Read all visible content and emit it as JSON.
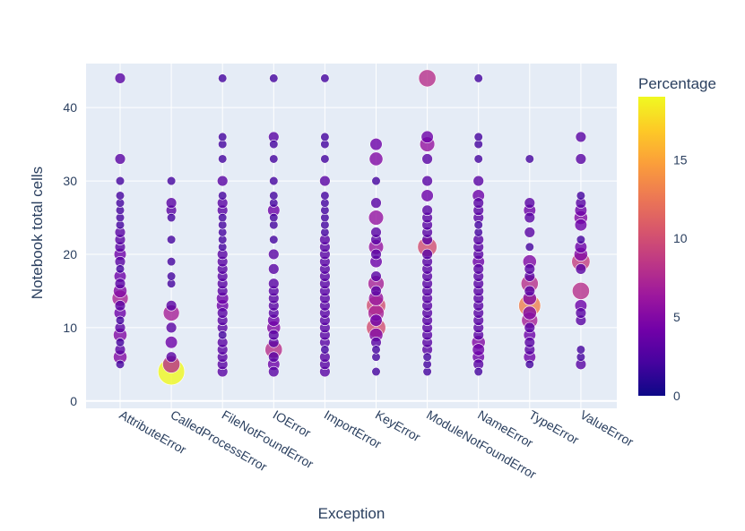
{
  "chart_data": {
    "type": "scatter",
    "subtype": "bubble",
    "xlabel": "Exception",
    "ylabel": "Notebook total cells",
    "categories": [
      "AttributeError",
      "CalledProcessError",
      "FileNotFoundError",
      "IOError",
      "ImportError",
      "KeyError",
      "ModuleNotFoundError",
      "NameError",
      "TypeError",
      "ValueError"
    ],
    "ylim": [
      -1,
      46
    ],
    "yticks": [
      0,
      10,
      20,
      30,
      40
    ],
    "colorbar": {
      "title": "Percentage",
      "min": 0,
      "max": 19,
      "ticks": [
        0,
        5,
        10,
        15
      ]
    },
    "colorscale": [
      "#0d0887",
      "#46039f",
      "#7201a8",
      "#9c179e",
      "#bd3786",
      "#d8576b",
      "#ed7953",
      "#fb9f3a",
      "#fdca26",
      "#f0f921"
    ],
    "series": [
      {
        "name": "AttributeError",
        "points": [
          [
            5,
            2
          ],
          [
            6,
            5
          ],
          [
            7,
            3
          ],
          [
            8,
            2
          ],
          [
            9,
            5
          ],
          [
            10,
            3
          ],
          [
            11,
            2
          ],
          [
            12,
            4
          ],
          [
            13,
            3
          ],
          [
            14,
            7
          ],
          [
            15,
            5
          ],
          [
            16,
            3
          ],
          [
            17,
            4
          ],
          [
            18,
            2
          ],
          [
            19,
            3
          ],
          [
            20,
            4
          ],
          [
            21,
            3
          ],
          [
            22,
            3
          ],
          [
            23,
            3
          ],
          [
            24,
            2
          ],
          [
            25,
            2
          ],
          [
            26,
            2
          ],
          [
            27,
            2
          ],
          [
            28,
            2
          ],
          [
            30,
            2
          ],
          [
            33,
            3
          ],
          [
            44,
            3
          ]
        ]
      },
      {
        "name": "CalledProcessError",
        "points": [
          [
            4,
            19
          ],
          [
            5,
            8
          ],
          [
            6,
            3
          ],
          [
            8,
            4
          ],
          [
            10,
            3
          ],
          [
            12,
            7
          ],
          [
            13,
            3
          ],
          [
            16,
            2
          ],
          [
            17,
            2
          ],
          [
            19,
            2
          ],
          [
            22,
            2
          ],
          [
            25,
            2
          ],
          [
            26,
            3
          ],
          [
            27,
            3
          ],
          [
            30,
            2
          ]
        ]
      },
      {
        "name": "FileNotFoundError",
        "points": [
          [
            4,
            3
          ],
          [
            5,
            3
          ],
          [
            6,
            3
          ],
          [
            7,
            3
          ],
          [
            8,
            3
          ],
          [
            9,
            2
          ],
          [
            10,
            3
          ],
          [
            11,
            3
          ],
          [
            12,
            3
          ],
          [
            13,
            4
          ],
          [
            14,
            4
          ],
          [
            15,
            3
          ],
          [
            16,
            3
          ],
          [
            17,
            3
          ],
          [
            18,
            3
          ],
          [
            19,
            3
          ],
          [
            20,
            3
          ],
          [
            21,
            2
          ],
          [
            22,
            2
          ],
          [
            23,
            2
          ],
          [
            24,
            2
          ],
          [
            25,
            2
          ],
          [
            26,
            3
          ],
          [
            27,
            3
          ],
          [
            28,
            2
          ],
          [
            30,
            3
          ],
          [
            33,
            2
          ],
          [
            35,
            2
          ],
          [
            36,
            2
          ],
          [
            44,
            2
          ]
        ]
      },
      {
        "name": "IOError",
        "points": [
          [
            4,
            3
          ],
          [
            5,
            4
          ],
          [
            6,
            3
          ],
          [
            7,
            8
          ],
          [
            8,
            3
          ],
          [
            9,
            3
          ],
          [
            10,
            5
          ],
          [
            11,
            4
          ],
          [
            12,
            3
          ],
          [
            13,
            3
          ],
          [
            14,
            3
          ],
          [
            15,
            3
          ],
          [
            16,
            3
          ],
          [
            18,
            3
          ],
          [
            20,
            3
          ],
          [
            22,
            2
          ],
          [
            24,
            2
          ],
          [
            25,
            2
          ],
          [
            26,
            4
          ],
          [
            27,
            2
          ],
          [
            28,
            2
          ],
          [
            30,
            2
          ],
          [
            33,
            2
          ],
          [
            35,
            2
          ],
          [
            36,
            3
          ],
          [
            44,
            2
          ]
        ]
      },
      {
        "name": "ImportError",
        "points": [
          [
            4,
            3
          ],
          [
            5,
            3
          ],
          [
            6,
            3
          ],
          [
            7,
            2
          ],
          [
            8,
            3
          ],
          [
            9,
            3
          ],
          [
            10,
            3
          ],
          [
            11,
            3
          ],
          [
            12,
            3
          ],
          [
            13,
            3
          ],
          [
            14,
            3
          ],
          [
            15,
            3
          ],
          [
            16,
            3
          ],
          [
            17,
            3
          ],
          [
            18,
            3
          ],
          [
            19,
            3
          ],
          [
            20,
            3
          ],
          [
            21,
            3
          ],
          [
            22,
            3
          ],
          [
            23,
            2
          ],
          [
            24,
            2
          ],
          [
            25,
            2
          ],
          [
            26,
            2
          ],
          [
            27,
            2
          ],
          [
            28,
            2
          ],
          [
            30,
            3
          ],
          [
            33,
            2
          ],
          [
            35,
            2
          ],
          [
            36,
            2
          ],
          [
            44,
            2
          ]
        ]
      },
      {
        "name": "KeyError",
        "points": [
          [
            4,
            2
          ],
          [
            6,
            2
          ],
          [
            7,
            2
          ],
          [
            8,
            3
          ],
          [
            9,
            5
          ],
          [
            10,
            10
          ],
          [
            11,
            4
          ],
          [
            12,
            7
          ],
          [
            13,
            10
          ],
          [
            14,
            6
          ],
          [
            15,
            3
          ],
          [
            16,
            7
          ],
          [
            17,
            3
          ],
          [
            19,
            4
          ],
          [
            20,
            3
          ],
          [
            21,
            6
          ],
          [
            22,
            3
          ],
          [
            23,
            3
          ],
          [
            25,
            6
          ],
          [
            27,
            3
          ],
          [
            30,
            2
          ],
          [
            33,
            5
          ],
          [
            35,
            4
          ]
        ]
      },
      {
        "name": "ModuleNotFoundError",
        "points": [
          [
            4,
            2
          ],
          [
            5,
            2
          ],
          [
            6,
            2
          ],
          [
            7,
            3
          ],
          [
            8,
            3
          ],
          [
            9,
            3
          ],
          [
            10,
            3
          ],
          [
            11,
            3
          ],
          [
            12,
            3
          ],
          [
            13,
            3
          ],
          [
            14,
            3
          ],
          [
            15,
            3
          ],
          [
            16,
            3
          ],
          [
            17,
            3
          ],
          [
            18,
            3
          ],
          [
            19,
            3
          ],
          [
            20,
            3
          ],
          [
            21,
            10
          ],
          [
            22,
            3
          ],
          [
            23,
            3
          ],
          [
            24,
            3
          ],
          [
            25,
            3
          ],
          [
            26,
            3
          ],
          [
            28,
            4
          ],
          [
            30,
            3
          ],
          [
            33,
            3
          ],
          [
            35,
            6
          ],
          [
            36,
            4
          ],
          [
            44,
            8
          ]
        ]
      },
      {
        "name": "NameError",
        "points": [
          [
            4,
            2
          ],
          [
            5,
            3
          ],
          [
            6,
            4
          ],
          [
            7,
            4
          ],
          [
            8,
            5
          ],
          [
            9,
            3
          ],
          [
            10,
            3
          ],
          [
            11,
            3
          ],
          [
            12,
            3
          ],
          [
            13,
            3
          ],
          [
            14,
            3
          ],
          [
            15,
            3
          ],
          [
            16,
            3
          ],
          [
            17,
            3
          ],
          [
            18,
            3
          ],
          [
            19,
            4
          ],
          [
            20,
            3
          ],
          [
            21,
            3
          ],
          [
            22,
            3
          ],
          [
            23,
            2
          ],
          [
            24,
            2
          ],
          [
            25,
            3
          ],
          [
            26,
            3
          ],
          [
            27,
            3
          ],
          [
            28,
            4
          ],
          [
            30,
            3
          ],
          [
            33,
            2
          ],
          [
            35,
            2
          ],
          [
            36,
            2
          ],
          [
            44,
            2
          ]
        ]
      },
      {
        "name": "TypeError",
        "points": [
          [
            5,
            2
          ],
          [
            6,
            4
          ],
          [
            7,
            3
          ],
          [
            8,
            3
          ],
          [
            9,
            4
          ],
          [
            10,
            3
          ],
          [
            11,
            7
          ],
          [
            12,
            5
          ],
          [
            13,
            13
          ],
          [
            14,
            5
          ],
          [
            15,
            3
          ],
          [
            16,
            8
          ],
          [
            17,
            3
          ],
          [
            18,
            3
          ],
          [
            19,
            5
          ],
          [
            21,
            2
          ],
          [
            23,
            3
          ],
          [
            25,
            3
          ],
          [
            26,
            4
          ],
          [
            27,
            3
          ],
          [
            33,
            2
          ]
        ]
      },
      {
        "name": "ValueError",
        "points": [
          [
            5,
            3
          ],
          [
            6,
            2
          ],
          [
            7,
            2
          ],
          [
            11,
            3
          ],
          [
            12,
            3
          ],
          [
            13,
            4
          ],
          [
            15,
            8
          ],
          [
            18,
            3
          ],
          [
            19,
            9
          ],
          [
            20,
            5
          ],
          [
            21,
            4
          ],
          [
            22,
            2
          ],
          [
            24,
            4
          ],
          [
            25,
            5
          ],
          [
            26,
            4
          ],
          [
            27,
            3
          ],
          [
            28,
            2
          ],
          [
            33,
            3
          ],
          [
            36,
            3
          ]
        ]
      }
    ]
  }
}
